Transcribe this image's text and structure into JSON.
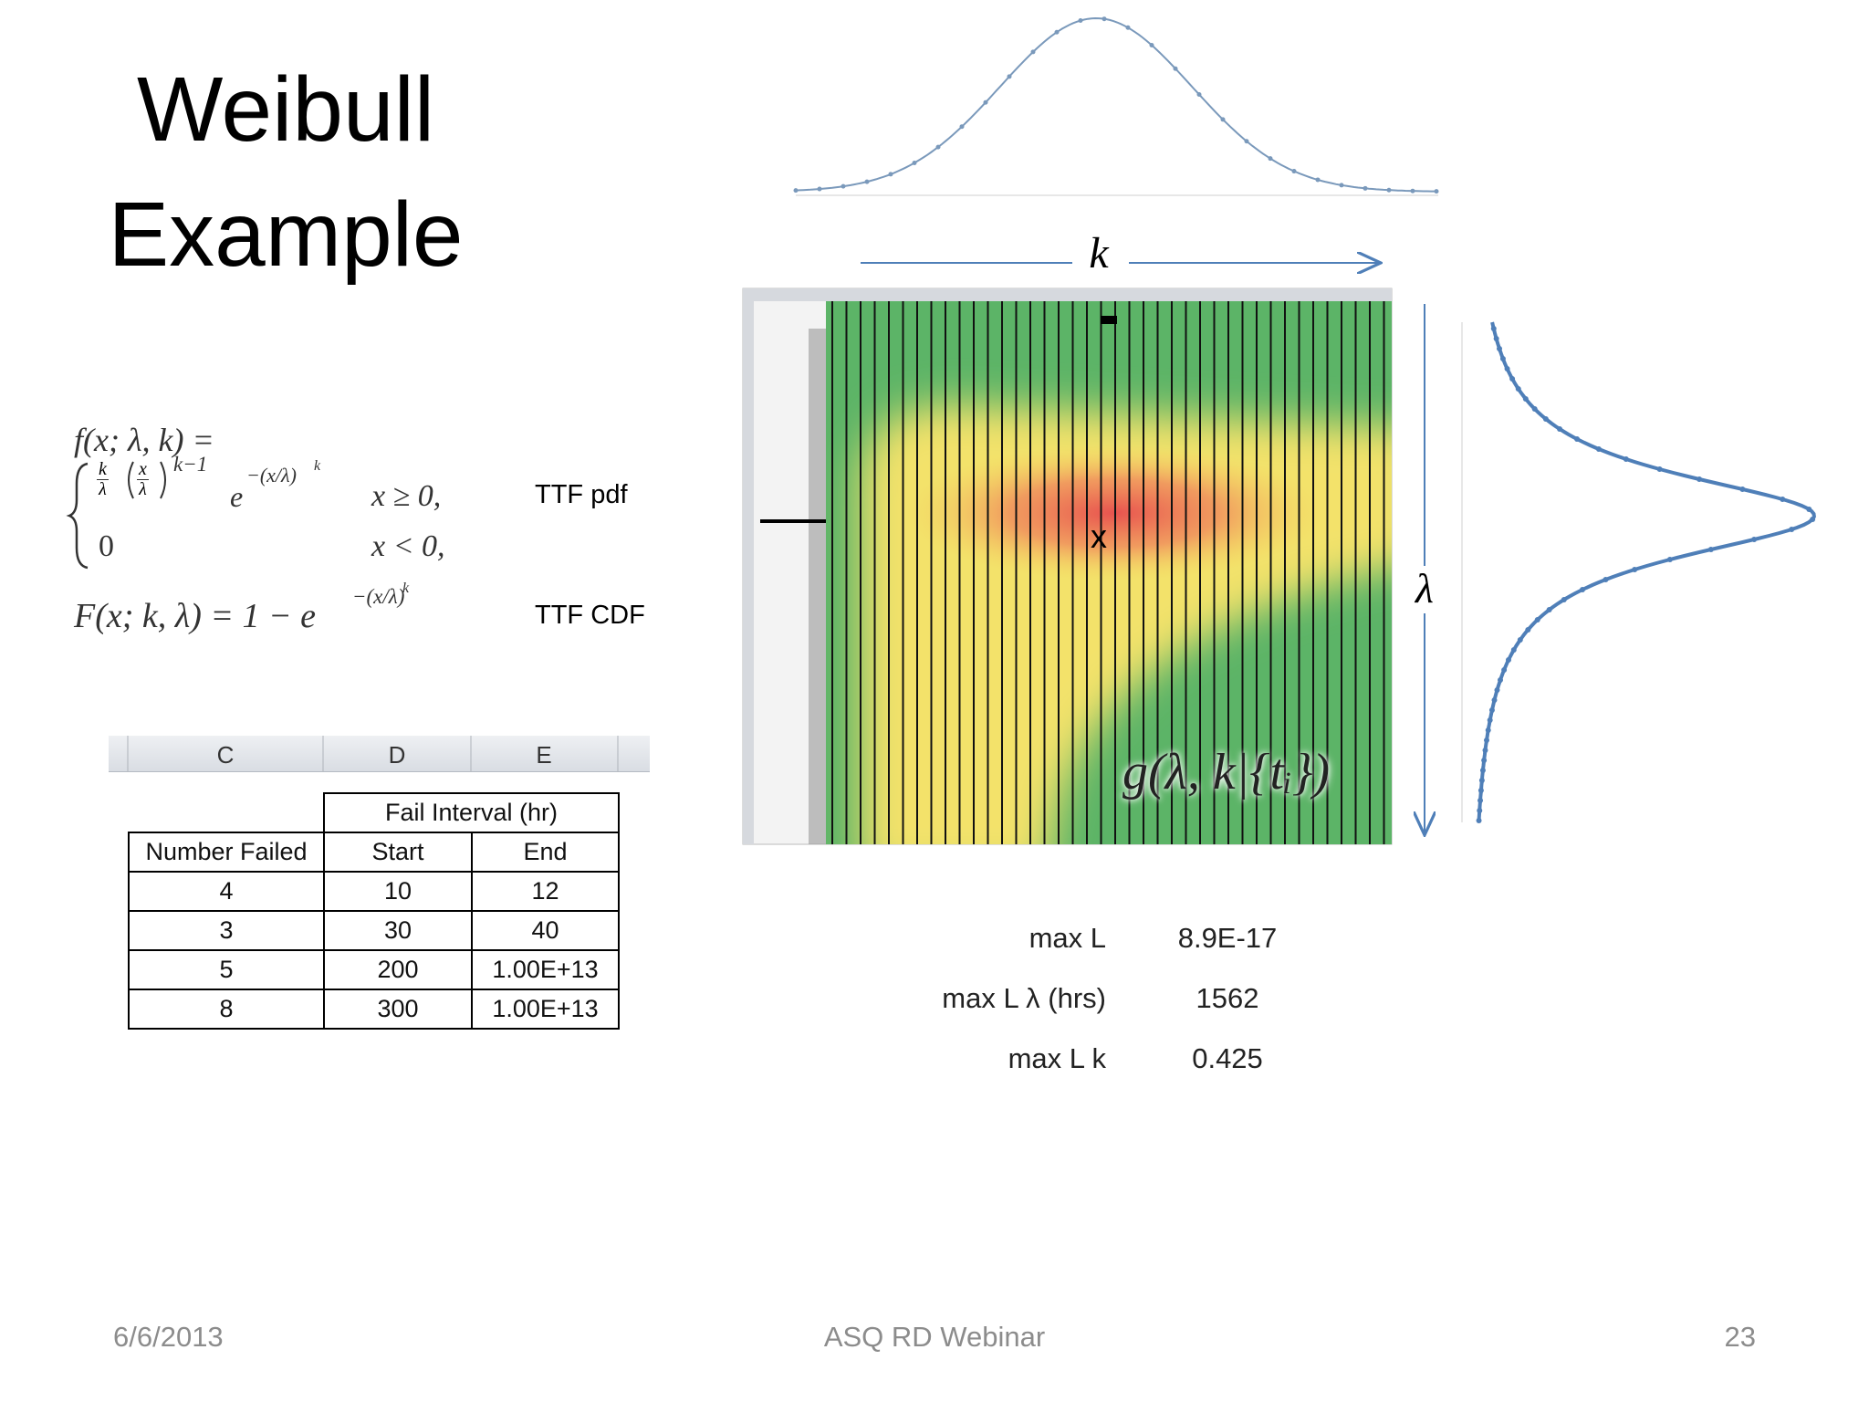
{
  "title": [
    "Weibull",
    "Example"
  ],
  "formulas": {
    "pdf_lhs": "f(x; λ, k) =",
    "case1": {
      "frac1": [
        "k",
        "λ"
      ],
      "frac2": [
        "x",
        "λ"
      ],
      "power": "k−1",
      "exp_base": "e",
      "exp": "−(x/λ)",
      "exp_k": "k",
      "cond": "x ≥ 0,"
    },
    "case2": {
      "value": "0",
      "cond": "x < 0,"
    },
    "cdf": {
      "lhs": "F(x; k, λ) = 1 − e",
      "exp": "−(x/λ)",
      "exp_k": "k"
    }
  },
  "formula_labels": [
    "TTF pdf",
    "TTF CDF"
  ],
  "spreadsheet_columns": [
    "C",
    "D",
    "E"
  ],
  "table": {
    "group_header": "Fail Interval (hr)",
    "headers": [
      "Number Failed",
      "Start",
      "End"
    ],
    "rows": [
      [
        "4",
        "10",
        "12"
      ],
      [
        "3",
        "30",
        "40"
      ],
      [
        "5",
        "200",
        "1.00E+13"
      ],
      [
        "8",
        "300",
        "1.00E+13"
      ]
    ]
  },
  "plot_labels": {
    "k_axis": "k",
    "lambda_axis": "λ",
    "max_marker": "x",
    "posterior": "g(λ, k|{tᵢ})"
  },
  "stats": [
    {
      "label": "max L",
      "value": "8.9E-17"
    },
    {
      "label": "max L λ (hrs)",
      "value": "1562"
    },
    {
      "label": "max L k",
      "value": "0.425"
    }
  ],
  "footer": {
    "date": "6/6/2013",
    "center": "ASQ RD Webinar",
    "page": "23"
  }
}
